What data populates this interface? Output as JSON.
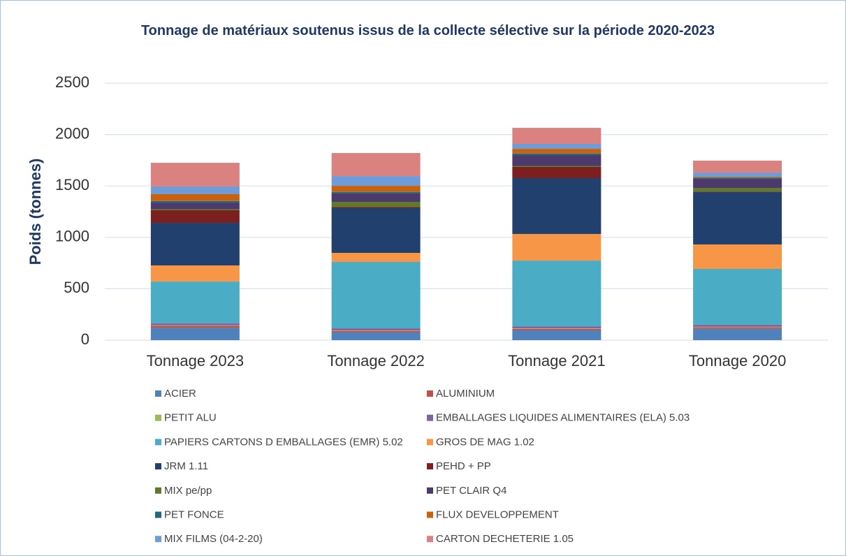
{
  "chart_data": {
    "type": "stacked_bar",
    "title": "Tonnage de matériaux soutenus issus de la collecte sélective sur la période 2020-2023",
    "ylabel": "Poids (tonnes)",
    "categories": [
      "Tonnage 2023",
      "Tonnage 2022",
      "Tonnage 2021",
      "Tonnage 2020"
    ],
    "ylim": [
      0,
      2500
    ],
    "yticks": [
      0,
      500,
      1000,
      1500,
      2000,
      2500
    ],
    "grid": true,
    "series": [
      {
        "name": "ACIER",
        "color": "#4f81bd",
        "values": [
          120,
          75,
          95,
          110
        ]
      },
      {
        "name": "ALUMINIUM",
        "color": "#c0504d",
        "values": [
          20,
          15,
          15,
          15
        ]
      },
      {
        "name": "PETIT ALU",
        "color": "#9bbb59",
        "values": [
          5,
          5,
          5,
          5
        ]
      },
      {
        "name": "EMBALLAGES LIQUIDES ALIMENTAIRES (ELA) 5.03",
        "color": "#8064a2",
        "values": [
          20,
          20,
          20,
          20
        ]
      },
      {
        "name": "PAPIERS CARTONS D EMBALLAGES (EMR) 5.02",
        "color": "#4bacc6",
        "values": [
          405,
          646,
          639,
          543
        ]
      },
      {
        "name": "GROS DE MAG 1.02",
        "color": "#f79646",
        "values": [
          157,
          88,
          259,
          238
        ]
      },
      {
        "name": "JRM 1.11",
        "color": "#22406e",
        "values": [
          414,
          435,
          543,
          509
        ]
      },
      {
        "name": "PEHD + PP",
        "color": "#7b1f1f",
        "values": [
          123,
          10,
          109,
          5
        ]
      },
      {
        "name": "MIX pe/pp",
        "color": "#5f7a2c",
        "values": [
          10,
          51,
          10,
          36
        ]
      },
      {
        "name": "PET CLAIR Q4",
        "color": "#4b3a6b",
        "values": [
          64,
          82,
          105,
          88
        ]
      },
      {
        "name": "PET FONCE",
        "color": "#1d6b80",
        "values": [
          15,
          15,
          15,
          10
        ]
      },
      {
        "name": "FLUX DEVELOPPEMENT",
        "color": "#c8620f",
        "values": [
          67,
          59,
          46,
          10
        ]
      },
      {
        "name": "MIX FILMS (04-2-20)",
        "color": "#6f9bd8",
        "values": [
          75,
          95,
          48,
          41
        ]
      },
      {
        "name": "CARTON DECHETERIE 1.05",
        "color": "#d9827f",
        "values": [
          230,
          224,
          156,
          116
        ]
      }
    ]
  }
}
